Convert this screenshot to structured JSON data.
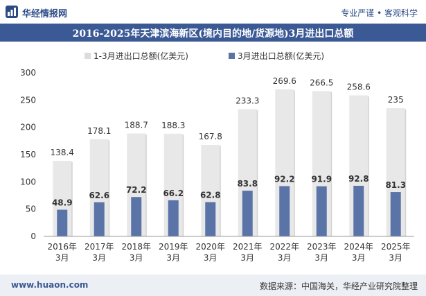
{
  "header": {
    "brand": "华经情报网",
    "tagline": "专业严谨 • 客观科学"
  },
  "footer": {
    "site": "www.huaon.com",
    "source": "数据来源：中国海关，华经产业研究院整理"
  },
  "colors": {
    "title_bg": "#3b5a95",
    "total_bar": "#e8e8e8",
    "march_bar": "#5b74a8",
    "footer_bg": "#eceff4"
  },
  "chart_data": {
    "type": "bar",
    "title": "2016-2025年天津滨海新区(境内目的地/货源地)3月进出口总额",
    "categories": [
      "2016年\n3月",
      "2017年\n3月",
      "2018年\n3月",
      "2019年\n3月",
      "2020年\n3月",
      "2021年\n3月",
      "2022年\n3月",
      "2023年\n3月",
      "2024年\n3月",
      "2025年\n3月"
    ],
    "series": [
      {
        "name": "1-3月进出口总额(亿美元)",
        "values": [
          138.4,
          178.1,
          188.7,
          188.3,
          167.8,
          233.3,
          269.6,
          266.5,
          258.6,
          235
        ]
      },
      {
        "name": "3月进出口总额(亿美元)",
        "values": [
          48.9,
          62.6,
          72.2,
          66.2,
          62.8,
          83.8,
          92.2,
          91.9,
          92.8,
          81.3
        ]
      }
    ],
    "ylim": [
      0,
      300
    ],
    "yticks": [
      0,
      50,
      100,
      150,
      200,
      250,
      300
    ],
    "legend": "top-left",
    "grid": false
  }
}
